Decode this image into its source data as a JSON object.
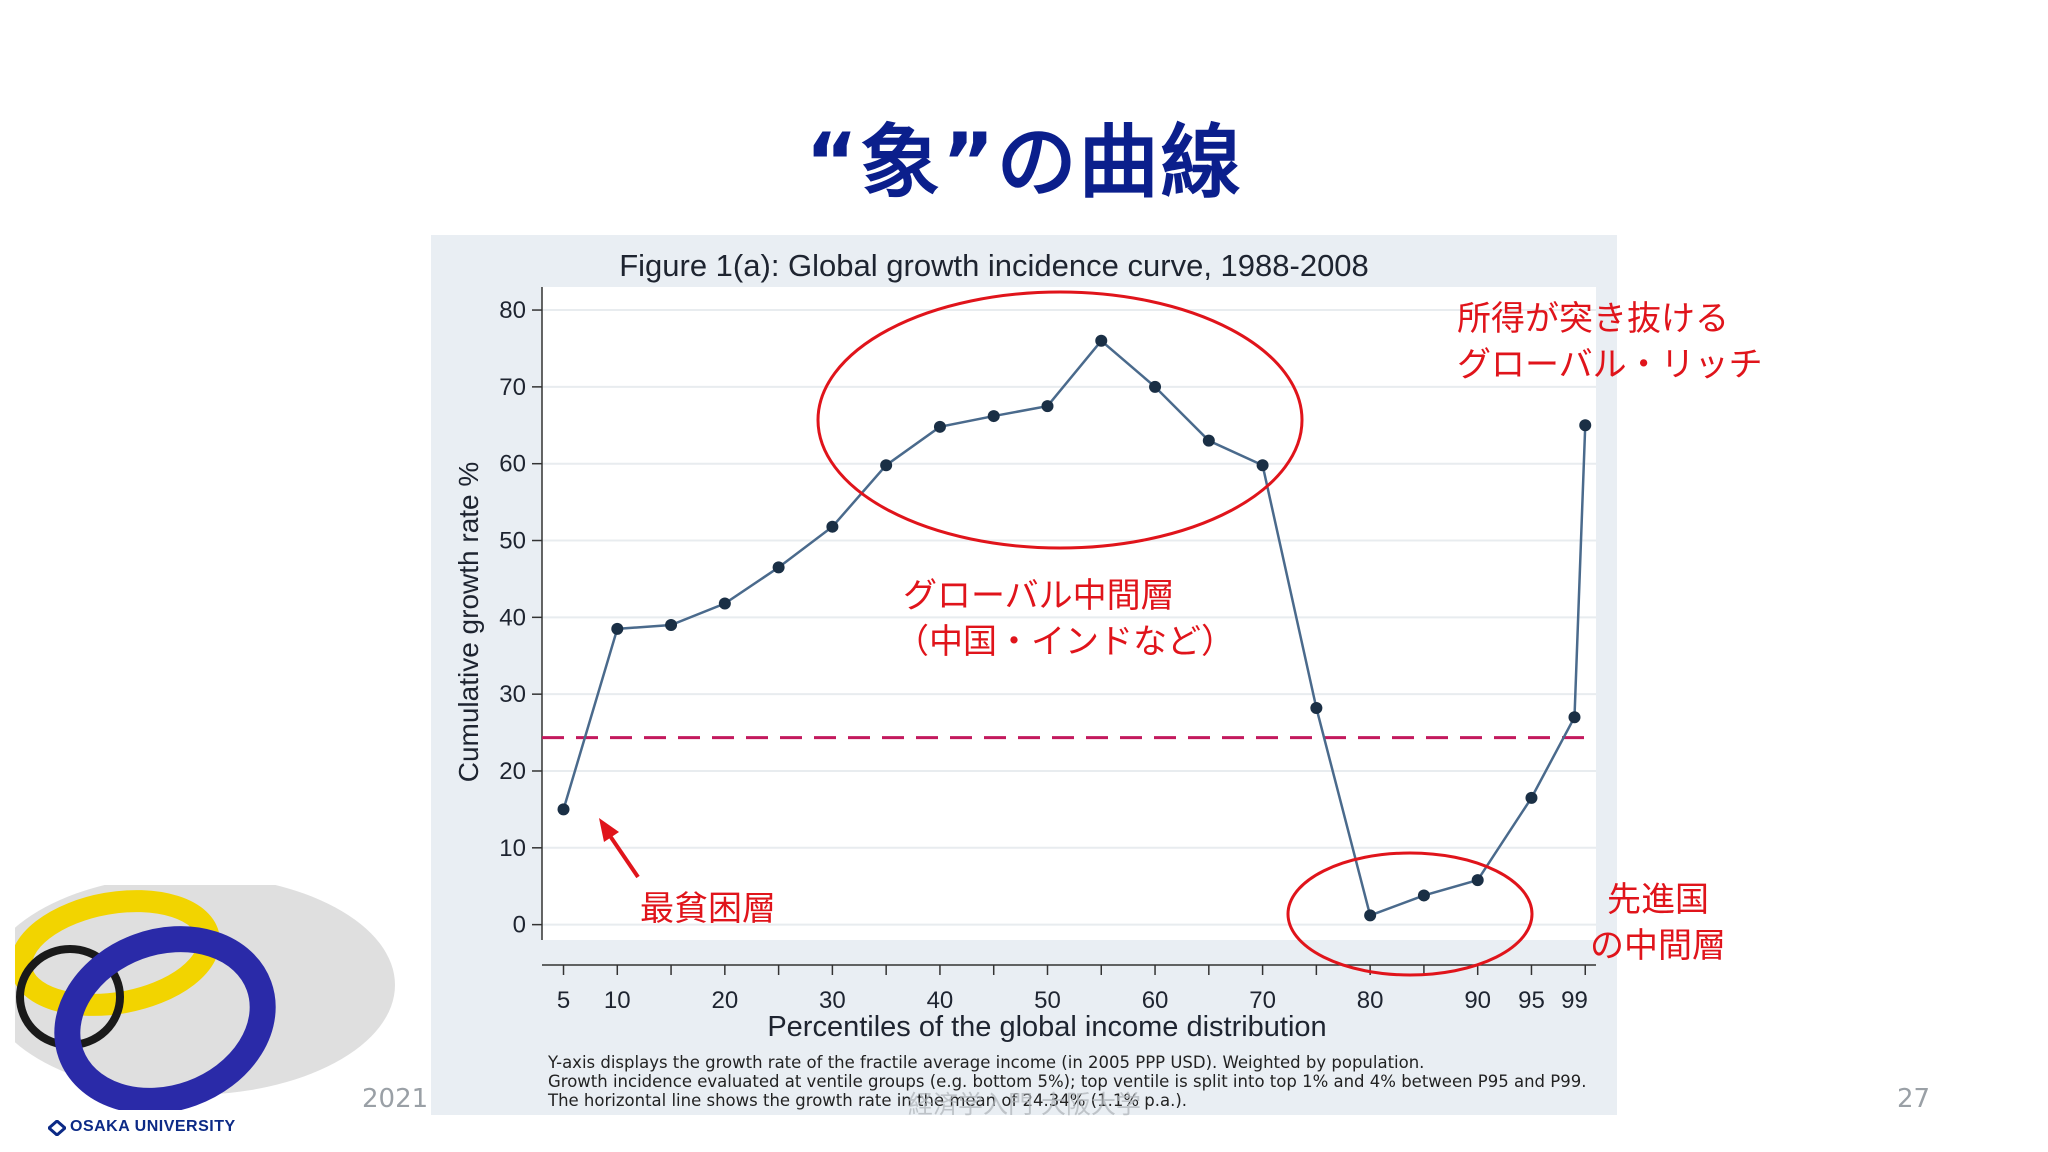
{
  "slide": {
    "title": "“象”の曲線",
    "year": "2021",
    "page_number": "27",
    "overlay_text": "経済学入門 大阪大学",
    "logo_text": "OSAKA UNIVERSITY"
  },
  "annotations": {
    "rich_line1": "所得が突き抜ける",
    "rich_line2": "グローバル・リッチ",
    "middle_line1": "グローバル中間層",
    "middle_line2": "（中国・インドなど）",
    "poorest": "最貧困層",
    "advanced_line1": "先進国",
    "advanced_line2": "の中間層"
  },
  "notes": {
    "line1": "Y-axis displays the growth rate of the fractile average income (in 2005 PPP USD). Weighted by population.",
    "line2": "Growth incidence evaluated at ventile groups (e.g. bottom 5%); top ventile is split into top 1% and 4% between P95 and P99.",
    "line3": "The horizontal line shows the growth rate in the mean of 24.34% (1.1% p.a.)."
  },
  "colors": {
    "title": "#0b1f8c",
    "annotation": "#e0141b",
    "line": "#4a6a8c",
    "point": "#1a2f45",
    "mean_line": "#c3195d"
  },
  "chart_data": {
    "type": "line",
    "title": "Figure 1(a): Global growth incidence curve, 1988-2008",
    "xlabel": "Percentiles of the global income distribution",
    "ylabel": "Cumulative growth rate %",
    "x": [
      5,
      10,
      15,
      20,
      25,
      30,
      35,
      40,
      45,
      50,
      55,
      60,
      65,
      70,
      75,
      80,
      85,
      90,
      95,
      99,
      100
    ],
    "y": [
      15,
      38.5,
      39,
      41.8,
      46.5,
      51.8,
      59.8,
      64.8,
      66.2,
      67.5,
      76,
      70,
      63,
      59.8,
      28.2,
      1.2,
      3.8,
      5.8,
      16.5,
      27,
      65
    ],
    "x_ticks": [
      5,
      10,
      20,
      30,
      40,
      50,
      60,
      70,
      80,
      90,
      95,
      99
    ],
    "y_ticks": [
      0,
      10,
      20,
      30,
      40,
      50,
      60,
      70,
      80
    ],
    "ylim": [
      -2,
      83
    ],
    "xlim": [
      3,
      101
    ],
    "mean_line": 24.34,
    "grid": true
  }
}
